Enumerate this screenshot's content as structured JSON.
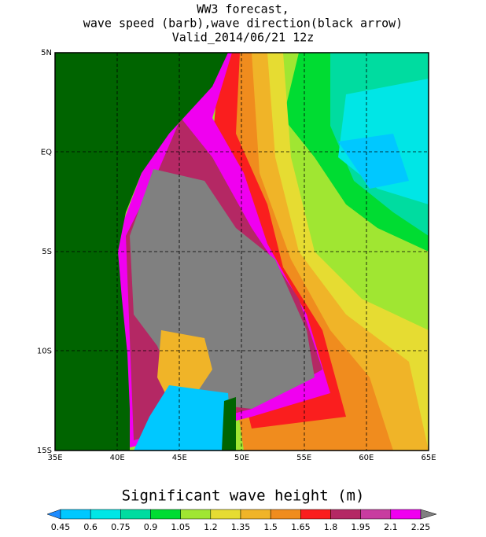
{
  "title": [
    "WW3 forecast,",
    "wave speed (barb),wave direction(black arrow)",
    "Valid_2014/06/21 12z"
  ],
  "map": {
    "x_labels": [
      "35E",
      "40E",
      "45E",
      "50E",
      "55E",
      "60E",
      "65E"
    ],
    "y_labels": [
      "5N",
      "EQ",
      "5S",
      "10S",
      "15S"
    ]
  },
  "colorbar": {
    "label": "Significant wave height (m)",
    "levels": [
      0.45,
      0.6,
      0.75,
      0.9,
      1.05,
      1.2,
      1.35,
      1.5,
      1.65,
      1.8,
      1.95,
      2.1,
      2.25
    ],
    "colors": [
      "#1e8cff",
      "#00c8ff",
      "#00e6e6",
      "#00dca0",
      "#00dc32",
      "#a0e632",
      "#e6dc32",
      "#f0b428",
      "#f08c1e",
      "#fa1e1e",
      "#b42864",
      "#c83ca0",
      "#f000f0",
      "#808080"
    ]
  }
}
